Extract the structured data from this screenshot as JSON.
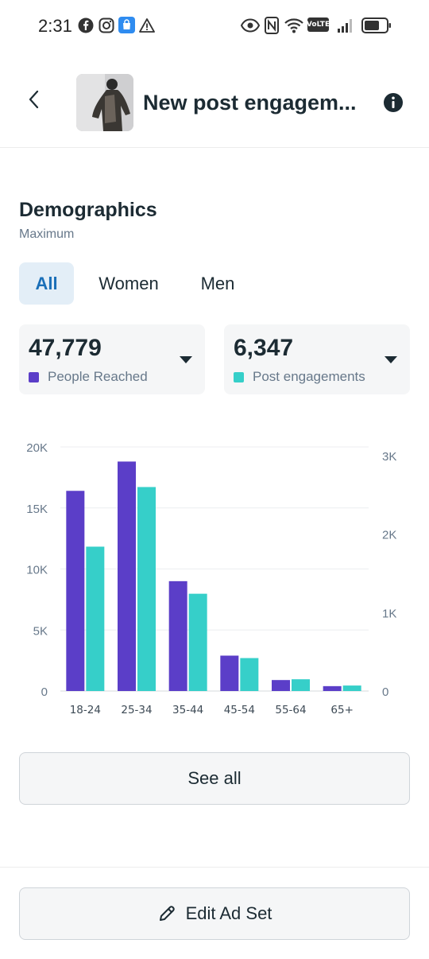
{
  "status_bar": {
    "time": "2:31",
    "left_icons": [
      "facebook-icon",
      "instagram-icon",
      "shopping-bag-icon",
      "warning-icon"
    ],
    "right_icons": [
      "eye-icon",
      "nfc-icon",
      "wifi-icon",
      "volte-icon",
      "signal-icon",
      "battery-icon"
    ],
    "volte_text": "VoLTE"
  },
  "header": {
    "title": "New post engagem..."
  },
  "demographics": {
    "title": "Demographics",
    "subtitle": "Maximum",
    "tabs": [
      {
        "label": "All",
        "selected": true
      },
      {
        "label": "Women",
        "selected": false
      },
      {
        "label": "Men",
        "selected": false
      }
    ]
  },
  "metrics": [
    {
      "value": "47,779",
      "label": "People Reached",
      "color": "#5b3ec8"
    },
    {
      "value": "6,347",
      "label": "Post engagements",
      "color": "#36cfc9"
    }
  ],
  "chart_data": {
    "type": "bar",
    "categories": [
      "18-24",
      "25-34",
      "35-44",
      "45-54",
      "55-64",
      "65+"
    ],
    "series": [
      {
        "name": "People Reached",
        "axis": "left",
        "color": "#5b3ec8",
        "values": [
          16400,
          18800,
          9000,
          2900,
          900,
          400
        ]
      },
      {
        "name": "Post engagements",
        "axis": "right",
        "color": "#36cfc9",
        "values": [
          1840,
          2600,
          1240,
          420,
          150,
          70
        ]
      }
    ],
    "left_axis": {
      "ticks": [
        "0",
        "5K",
        "10K",
        "15K",
        "20K"
      ],
      "ylim": [
        0,
        20000
      ]
    },
    "right_axis": {
      "ticks": [
        "0",
        "1K",
        "2K",
        "3K"
      ],
      "ylim": [
        0,
        3000
      ]
    },
    "grid": true
  },
  "actions": {
    "see_all": "See all",
    "edit_ad_set": "Edit Ad Set"
  }
}
